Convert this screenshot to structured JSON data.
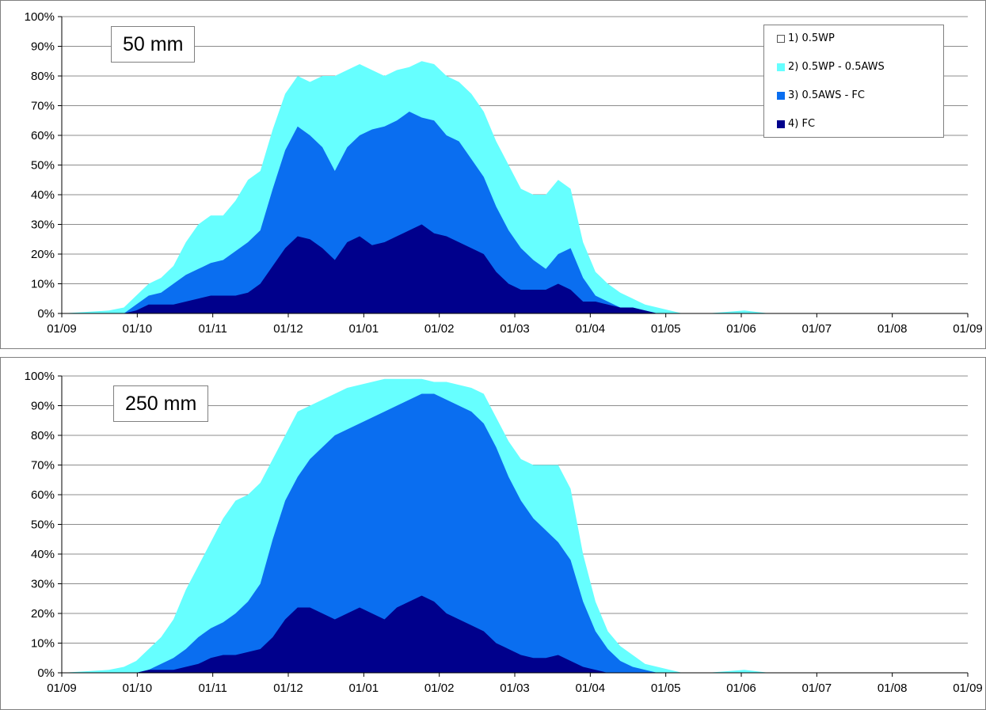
{
  "colors": {
    "c1": "#ffffff",
    "c2": "#66ffff",
    "c3": "#0a6ef0",
    "c4": "#00008c",
    "grid": "#8c8c8c",
    "border": "#808080"
  },
  "legend": {
    "items": [
      {
        "label": "1) 0.5WP",
        "color": "#ffffff"
      },
      {
        "label": "2) 0.5WP - 0.5AWS",
        "color": "#66ffff"
      },
      {
        "label": "3) 0.5AWS - FC",
        "color": "#0a6ef0"
      },
      {
        "label": "4) FC",
        "color": "#00008c"
      }
    ]
  },
  "chart_data": [
    {
      "type": "area",
      "title": "50 mm",
      "stacked": true,
      "x_tick_labels": [
        "01/09",
        "01/10",
        "01/11",
        "01/12",
        "01/01",
        "01/02",
        "01/03",
        "01/04",
        "01/05",
        "01/06",
        "01/07",
        "01/08",
        "01/09"
      ],
      "y_tick_labels": [
        "0%",
        "10%",
        "20%",
        "30%",
        "40%",
        "50%",
        "60%",
        "70%",
        "80%",
        "90%",
        "100%"
      ],
      "ylim": [
        0,
        100
      ],
      "grid": true,
      "legend_position": "top-right",
      "x_days": [
        0,
        19,
        25,
        30,
        35,
        40,
        45,
        50,
        55,
        60,
        65,
        70,
        75,
        80,
        85,
        90,
        95,
        100,
        105,
        110,
        115,
        120,
        125,
        130,
        135,
        140,
        145,
        150,
        155,
        160,
        165,
        170,
        175,
        180,
        185,
        190,
        195,
        200,
        205,
        210,
        215,
        220,
        225,
        230,
        235,
        240,
        245,
        250,
        255,
        260,
        275,
        285,
        365
      ],
      "series": [
        {
          "name": "4) FC",
          "values": [
            0,
            0,
            0,
            1,
            3,
            3,
            3,
            4,
            5,
            6,
            6,
            6,
            7,
            10,
            16,
            22,
            26,
            25,
            22,
            18,
            24,
            26,
            23,
            24,
            26,
            28,
            30,
            27,
            26,
            24,
            22,
            20,
            14,
            10,
            8,
            8,
            8,
            10,
            8,
            4,
            4,
            3,
            2,
            2,
            1,
            0,
            0,
            0,
            0,
            0,
            0,
            0,
            0
          ]
        },
        {
          "name": "3) 0.5AWS - FC",
          "values": [
            0,
            0,
            0,
            3,
            6,
            7,
            10,
            13,
            15,
            17,
            18,
            21,
            24,
            28,
            42,
            55,
            63,
            60,
            56,
            48,
            56,
            60,
            62,
            63,
            65,
            68,
            66,
            65,
            60,
            58,
            52,
            46,
            36,
            28,
            22,
            18,
            15,
            20,
            22,
            12,
            6,
            4,
            2,
            2,
            1,
            0,
            0,
            0,
            0,
            0,
            0,
            0,
            0
          ]
        },
        {
          "name": "2) 0.5WP - 0.5AWS",
          "values": [
            0,
            1,
            2,
            6,
            10,
            12,
            16,
            24,
            30,
            33,
            33,
            38,
            45,
            48,
            62,
            74,
            80,
            78,
            80,
            80,
            82,
            84,
            82,
            80,
            82,
            83,
            85,
            84,
            80,
            78,
            74,
            68,
            58,
            50,
            42,
            40,
            40,
            45,
            42,
            24,
            14,
            10,
            7,
            5,
            3,
            2,
            1,
            0,
            0,
            0,
            1,
            0,
            0
          ]
        }
      ]
    },
    {
      "type": "area",
      "title": "250 mm",
      "stacked": true,
      "x_tick_labels": [
        "01/09",
        "01/10",
        "01/11",
        "01/12",
        "01/01",
        "01/02",
        "01/03",
        "01/04",
        "01/05",
        "01/06",
        "01/07",
        "01/08",
        "01/09"
      ],
      "y_tick_labels": [
        "0%",
        "10%",
        "20%",
        "30%",
        "40%",
        "50%",
        "60%",
        "70%",
        "80%",
        "90%",
        "100%"
      ],
      "ylim": [
        0,
        100
      ],
      "grid": true,
      "legend_position": "none",
      "x_days": [
        0,
        19,
        25,
        30,
        35,
        40,
        45,
        50,
        55,
        60,
        65,
        70,
        75,
        80,
        85,
        90,
        95,
        100,
        105,
        110,
        115,
        120,
        125,
        130,
        135,
        140,
        145,
        150,
        155,
        160,
        165,
        170,
        175,
        180,
        185,
        190,
        195,
        200,
        205,
        210,
        215,
        220,
        225,
        230,
        235,
        240,
        245,
        250,
        255,
        260,
        275,
        285,
        365
      ],
      "series": [
        {
          "name": "4) FC",
          "values": [
            0,
            0,
            0,
            0,
            1,
            1,
            1,
            2,
            3,
            5,
            6,
            6,
            7,
            8,
            12,
            18,
            22,
            22,
            20,
            18,
            20,
            22,
            20,
            18,
            22,
            24,
            26,
            24,
            20,
            18,
            16,
            14,
            10,
            8,
            6,
            5,
            5,
            6,
            4,
            2,
            1,
            0,
            0,
            0,
            0,
            0,
            0,
            0,
            0,
            0,
            0,
            0,
            0
          ]
        },
        {
          "name": "3) 0.5AWS - FC",
          "values": [
            0,
            0,
            0,
            0,
            1,
            3,
            5,
            8,
            12,
            15,
            17,
            20,
            24,
            30,
            45,
            58,
            66,
            72,
            76,
            80,
            82,
            84,
            86,
            88,
            90,
            92,
            94,
            94,
            92,
            90,
            88,
            84,
            76,
            66,
            58,
            52,
            48,
            44,
            38,
            24,
            14,
            8,
            4,
            2,
            1,
            0,
            0,
            0,
            0,
            0,
            0,
            0,
            0
          ]
        },
        {
          "name": "2) 0.5WP - 0.5AWS",
          "values": [
            0,
            1,
            2,
            4,
            8,
            12,
            18,
            28,
            36,
            44,
            52,
            58,
            60,
            64,
            72,
            80,
            88,
            90,
            92,
            94,
            96,
            97,
            98,
            99,
            99,
            99,
            99,
            98,
            98,
            97,
            96,
            94,
            86,
            78,
            72,
            70,
            70,
            70,
            62,
            40,
            24,
            14,
            9,
            6,
            3,
            2,
            1,
            0,
            0,
            0,
            1,
            0,
            0
          ]
        }
      ]
    }
  ]
}
